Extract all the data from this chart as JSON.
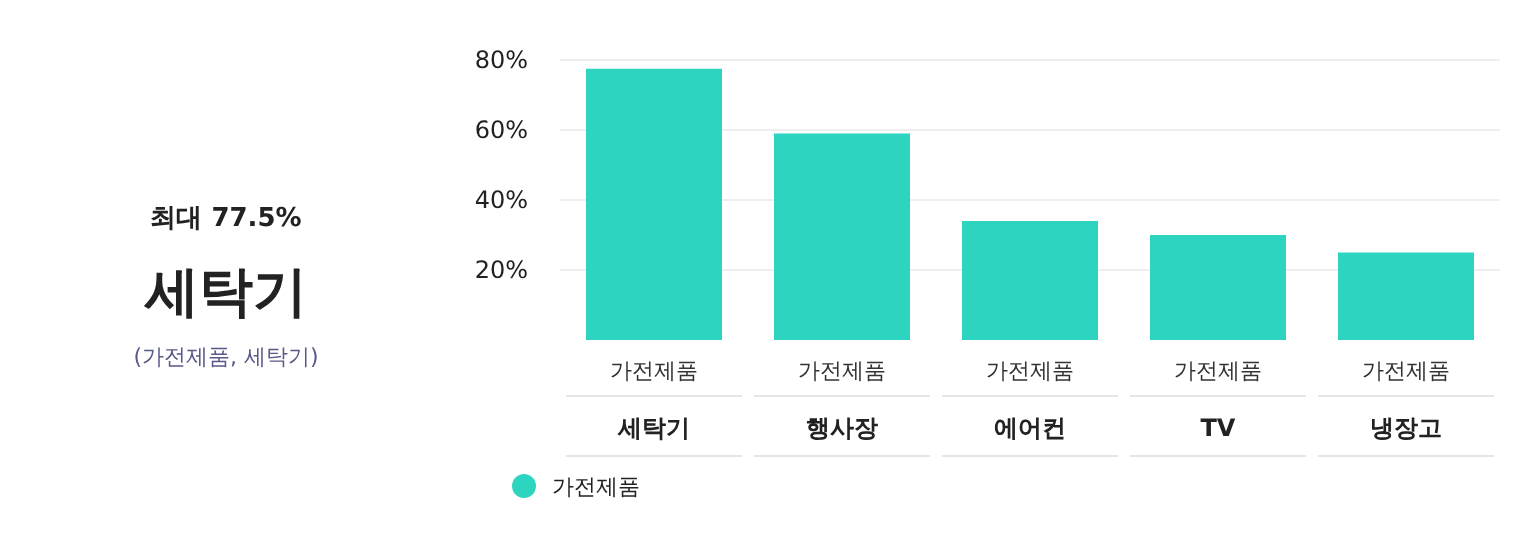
{
  "chart_data": [
    {
      "type": "other",
      "title": "세탁기",
      "annotations": [
        "최대 77.5%",
        "(가전제품, 세탁기)"
      ]
    },
    {
      "type": "bar",
      "categories": [
        "세탁기",
        "행사장",
        "에어컨",
        "TV",
        "냉장고"
      ],
      "series": [
        {
          "name": "가전제품",
          "color": "#2dd4bf",
          "values": [
            77.5,
            59,
            34,
            30,
            25
          ]
        }
      ],
      "ylim": [
        0,
        80
      ],
      "yticks": [
        {
          "value": 20,
          "label": "20%"
        },
        {
          "value": 40,
          "label": "40%"
        },
        {
          "value": 60,
          "label": "60%"
        },
        {
          "value": 80,
          "label": "80%"
        }
      ],
      "grid": "y",
      "legend": "bottom left"
    }
  ]
}
